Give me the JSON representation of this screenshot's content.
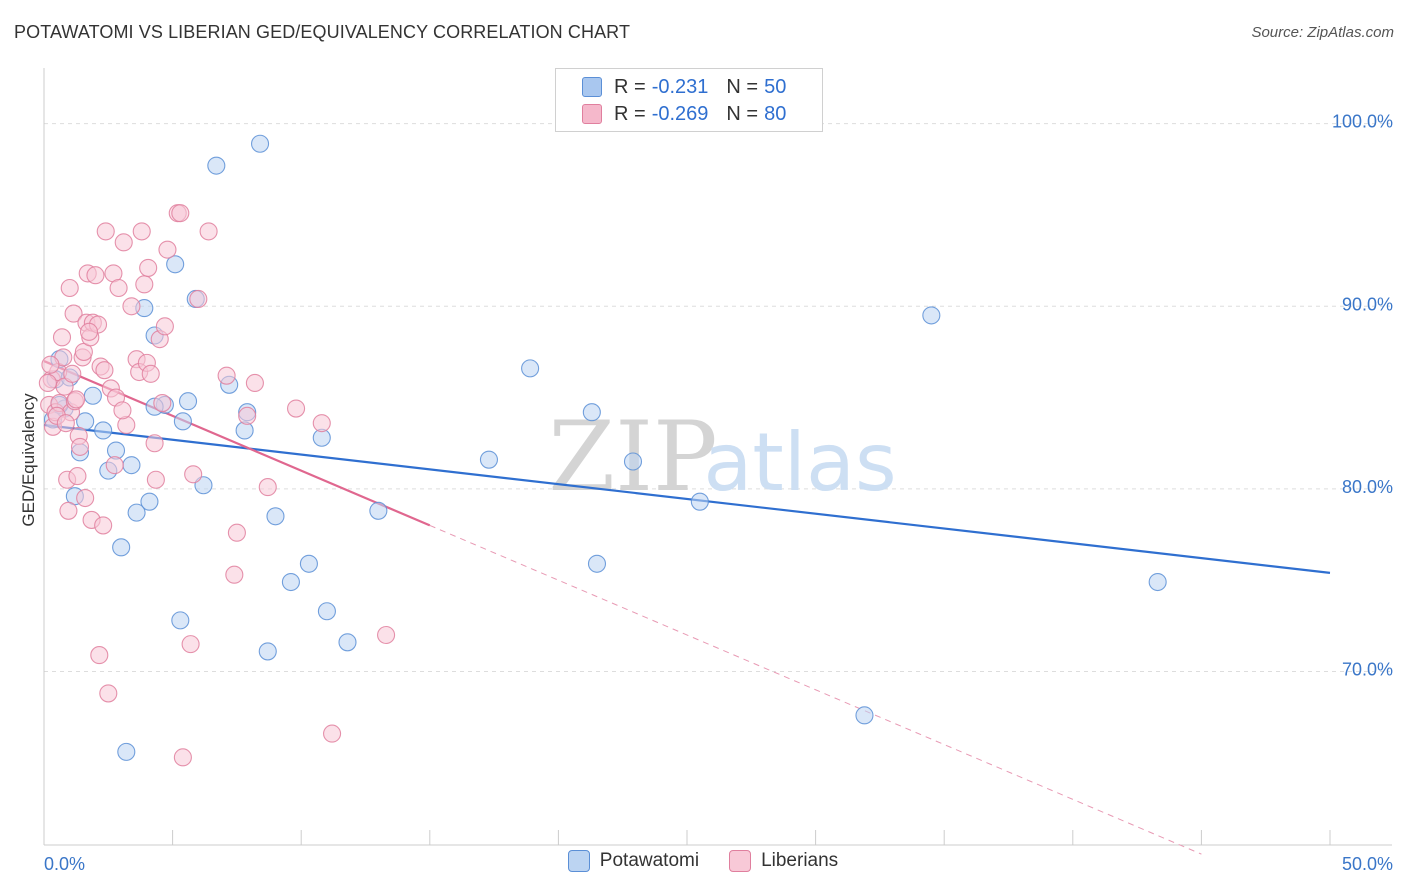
{
  "header": {
    "title": "POTAWATOMI VS LIBERIAN GED/EQUIVALENCY CORRELATION CHART",
    "source": "Source: ZipAtlas.com"
  },
  "watermark": {
    "zip": "ZIP",
    "atlas": "atlas"
  },
  "legend": {
    "rows": [
      {
        "r_label": "R =",
        "r_value": "-0.231",
        "n_label": "N =",
        "n_value": "50",
        "color": "#a9c7ef",
        "stroke": "#5b8fd6"
      },
      {
        "r_label": "R =",
        "r_value": "-0.269",
        "n_label": "N =",
        "n_value": "80",
        "color": "#f5b8cb",
        "stroke": "#e07f9e"
      }
    ]
  },
  "bottom_legend": [
    {
      "label": "Potawatomi",
      "color": "#bcd4f2",
      "stroke": "#5b8fd6"
    },
    {
      "label": "Liberians",
      "color": "#f8c9d7",
      "stroke": "#e07f9e"
    }
  ],
  "chart_data": {
    "type": "scatter",
    "title": "POTAWATOMI VS LIBERIAN GED/EQUIVALENCY CORRELATION CHART",
    "xlabel": "",
    "ylabel": "GED/Equivalency",
    "xlim": [
      0,
      50
    ],
    "ylim": [
      60.5,
      102.5
    ],
    "x_tick_labels": [
      {
        "value": 0,
        "label": "0.0%"
      },
      {
        "value": 50,
        "label": "50.0%"
      }
    ],
    "y_tick_labels": [
      {
        "value": 70,
        "label": "70.0%"
      },
      {
        "value": 80,
        "label": "80.0%"
      },
      {
        "value": 90,
        "label": "90.0%"
      },
      {
        "value": 100,
        "label": "100.0%"
      }
    ],
    "grid": true,
    "series": [
      {
        "name": "Potawatomi",
        "color": "#5b8fd6",
        "fill": "#bcd4f2",
        "points": [
          [
            0.35,
            83.8
          ],
          [
            0.45,
            86.0
          ],
          [
            0.6,
            87.1
          ],
          [
            0.8,
            84.4
          ],
          [
            1.0,
            86.1
          ],
          [
            1.2,
            79.6
          ],
          [
            1.4,
            82.0
          ],
          [
            1.6,
            83.7
          ],
          [
            1.9,
            85.1
          ],
          [
            2.3,
            83.2
          ],
          [
            2.5,
            81.0
          ],
          [
            2.8,
            82.1
          ],
          [
            3.0,
            76.8
          ],
          [
            3.4,
            81.3
          ],
          [
            3.6,
            78.7
          ],
          [
            3.9,
            89.9
          ],
          [
            4.1,
            79.3
          ],
          [
            4.3,
            88.4
          ],
          [
            4.7,
            84.6
          ],
          [
            5.1,
            92.3
          ],
          [
            5.3,
            72.8
          ],
          [
            5.4,
            83.7
          ],
          [
            5.6,
            84.8
          ],
          [
            5.9,
            90.4
          ],
          [
            6.2,
            80.2
          ],
          [
            6.7,
            97.7
          ],
          [
            7.2,
            85.7
          ],
          [
            7.8,
            83.2
          ],
          [
            7.9,
            84.2
          ],
          [
            8.4,
            98.9
          ],
          [
            8.7,
            71.1
          ],
          [
            9.0,
            78.5
          ],
          [
            9.6,
            74.9
          ],
          [
            10.3,
            75.9
          ],
          [
            10.8,
            82.8
          ],
          [
            11.0,
            73.3
          ],
          [
            11.8,
            71.6
          ],
          [
            13.0,
            78.8
          ],
          [
            17.3,
            81.6
          ],
          [
            18.9,
            86.6
          ],
          [
            21.3,
            84.2
          ],
          [
            21.5,
            75.9
          ],
          [
            22.9,
            81.5
          ],
          [
            25.5,
            79.3
          ],
          [
            31.9,
            67.6
          ],
          [
            34.5,
            89.5
          ],
          [
            43.3,
            74.9
          ],
          [
            4.3,
            84.5
          ],
          [
            0.6,
            84.6
          ],
          [
            3.2,
            65.6
          ]
        ],
        "trend": {
          "x1": 0,
          "y1": 83.5,
          "x2": 50,
          "y2": 75.4
        }
      },
      {
        "name": "Liberians",
        "color": "#e07f9e",
        "fill": "#f8c9d7",
        "points": [
          [
            0.2,
            84.6
          ],
          [
            0.3,
            86.0
          ],
          [
            0.35,
            83.4
          ],
          [
            0.45,
            84.2
          ],
          [
            0.55,
            86.4
          ],
          [
            0.6,
            84.7
          ],
          [
            0.7,
            88.3
          ],
          [
            0.75,
            87.2
          ],
          [
            0.8,
            85.6
          ],
          [
            0.9,
            80.5
          ],
          [
            0.95,
            78.8
          ],
          [
            1.0,
            91.0
          ],
          [
            1.05,
            84.2
          ],
          [
            1.1,
            86.3
          ],
          [
            1.15,
            89.6
          ],
          [
            1.2,
            84.8
          ],
          [
            1.3,
            80.7
          ],
          [
            1.35,
            82.9
          ],
          [
            1.4,
            82.3
          ],
          [
            1.5,
            87.2
          ],
          [
            1.55,
            87.5
          ],
          [
            1.6,
            79.5
          ],
          [
            1.65,
            89.1
          ],
          [
            1.7,
            91.8
          ],
          [
            1.8,
            88.3
          ],
          [
            1.85,
            78.3
          ],
          [
            1.9,
            89.1
          ],
          [
            2.0,
            91.7
          ],
          [
            2.1,
            89.0
          ],
          [
            2.15,
            70.9
          ],
          [
            2.2,
            86.7
          ],
          [
            2.3,
            78.0
          ],
          [
            2.4,
            94.1
          ],
          [
            2.5,
            68.8
          ],
          [
            2.6,
            85.5
          ],
          [
            2.7,
            91.8
          ],
          [
            2.75,
            81.3
          ],
          [
            2.8,
            85.0
          ],
          [
            2.9,
            91.0
          ],
          [
            3.1,
            93.5
          ],
          [
            3.2,
            83.5
          ],
          [
            3.4,
            90.0
          ],
          [
            3.6,
            87.1
          ],
          [
            3.7,
            86.4
          ],
          [
            3.8,
            94.1
          ],
          [
            3.9,
            91.2
          ],
          [
            4.0,
            86.9
          ],
          [
            4.05,
            92.1
          ],
          [
            4.15,
            86.3
          ],
          [
            4.3,
            82.5
          ],
          [
            4.35,
            80.5
          ],
          [
            4.5,
            88.2
          ],
          [
            4.6,
            84.7
          ],
          [
            4.7,
            88.9
          ],
          [
            4.8,
            93.1
          ],
          [
            5.2,
            95.1
          ],
          [
            5.3,
            95.1
          ],
          [
            5.4,
            65.3
          ],
          [
            5.7,
            71.5
          ],
          [
            5.8,
            80.8
          ],
          [
            6.0,
            90.4
          ],
          [
            6.4,
            94.1
          ],
          [
            7.1,
            86.2
          ],
          [
            7.4,
            75.3
          ],
          [
            7.5,
            77.6
          ],
          [
            7.9,
            84.0
          ],
          [
            8.2,
            85.8
          ],
          [
            8.7,
            80.1
          ],
          [
            9.8,
            84.4
          ],
          [
            10.8,
            83.6
          ],
          [
            11.2,
            66.6
          ],
          [
            13.3,
            72.0
          ],
          [
            0.15,
            85.8
          ],
          [
            0.25,
            86.8
          ],
          [
            0.5,
            84.0
          ],
          [
            0.85,
            83.6
          ],
          [
            1.25,
            84.9
          ],
          [
            2.35,
            86.5
          ],
          [
            1.75,
            88.6
          ],
          [
            3.05,
            84.3
          ]
        ],
        "trend": {
          "x1": 0,
          "y1": 87.0,
          "x2": 15.0,
          "y2": 78.0
        },
        "trend_extension": {
          "x1": 15.0,
          "y1": 78.0,
          "x2": 45.0,
          "y2": 60.0
        }
      }
    ]
  }
}
